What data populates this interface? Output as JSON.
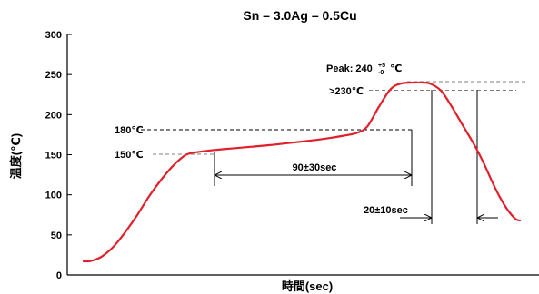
{
  "chart_data": {
    "type": "line",
    "title": "Sn – 3.0Ag – 0.5Cu",
    "xlabel": "時間(sec)",
    "ylabel": "温度(℃)",
    "ylim": [
      0,
      300
    ],
    "yticks": [
      "0",
      "50",
      "100",
      "150",
      "200",
      "250",
      "300"
    ],
    "grid": false,
    "series": [
      {
        "x": [
          0,
          8,
          20,
          35,
          55,
          75,
          95,
          110,
          118,
          130,
          145,
          165,
          185,
          205,
          225,
          245,
          260,
          272,
          285,
          300,
          312,
          325,
          338,
          350,
          365,
          380,
          393,
          405,
          418,
          430,
          440,
          450,
          458,
          466,
          475,
          480
        ],
        "values": [
          17,
          17.5,
          23,
          38,
          68,
          103,
          132,
          148,
          152,
          154,
          156,
          158,
          160,
          162,
          164.5,
          167,
          169,
          171,
          173.5,
          177,
          185,
          210,
          232,
          239,
          240,
          239,
          230,
          210,
          185,
          162,
          140,
          115,
          97,
          82,
          70,
          68
        ]
      }
    ],
    "colors": {
      "curve": "#e0202a",
      "axis": "#000000",
      "guide": "#555555"
    }
  },
  "annotations": {
    "peak_prefix": "Peak: 240",
    "peak_sup_plus": "+5",
    "peak_sup_minus": "-0",
    "peak_unit": "℃",
    "above_230": ">230℃",
    "t180": "180℃",
    "t150": "150℃",
    "preheat_time": "90±30sec",
    "peak_time": "20±10sec"
  }
}
